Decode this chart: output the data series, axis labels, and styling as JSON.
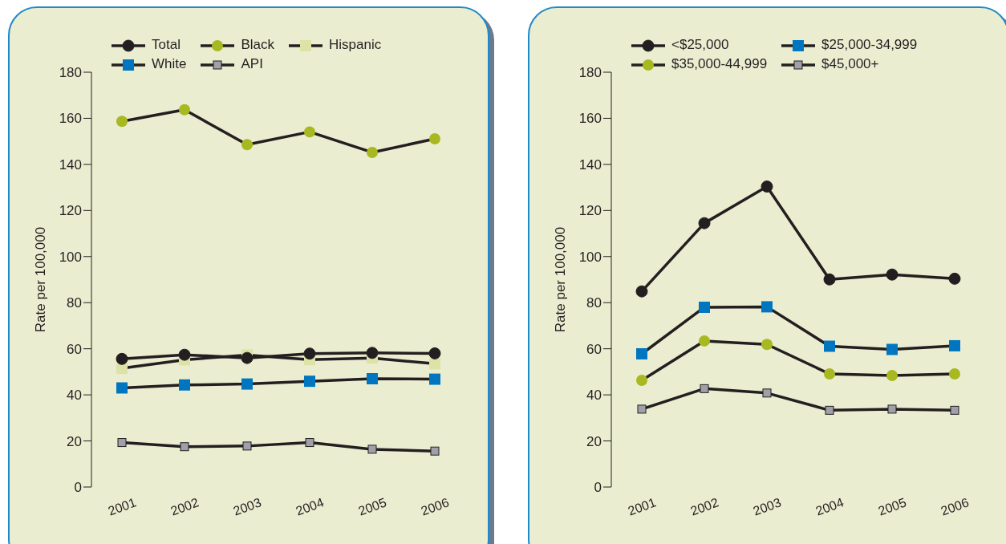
{
  "chart_data": [
    {
      "type": "line",
      "categories": [
        "2001",
        "2002",
        "2003",
        "2004",
        "2005",
        "2006"
      ],
      "ylabel": "Rate per 100,000",
      "ylim": [
        0,
        180
      ],
      "yticks": [
        0,
        20,
        40,
        60,
        80,
        100,
        120,
        140,
        160,
        180
      ],
      "grid": false,
      "legend": "top",
      "series": [
        {
          "name": "Total",
          "color": "#231f20",
          "marker": "circle",
          "values": [
            55.6,
            57.4,
            56,
            57.9,
            58.2,
            58
          ]
        },
        {
          "name": "Black",
          "color": "#a8b820",
          "marker": "circle",
          "values": [
            158.7,
            163.7,
            148.6,
            154.1,
            145.2,
            151.1
          ]
        },
        {
          "name": "Hispanic",
          "color": "#dde2a6",
          "marker": "square",
          "values": [
            51.5,
            55.2,
            57.3,
            55.3,
            56,
            53.5
          ]
        },
        {
          "name": "White",
          "color": "#0076c0",
          "marker": "square",
          "values": [
            43,
            44.3,
            44.7,
            45.9,
            47,
            46.8
          ]
        },
        {
          "name": "API",
          "color": "#a0a0a8",
          "marker": "square",
          "values": [
            19.3,
            17.5,
            17.8,
            19.3,
            16.4,
            15.6
          ]
        }
      ]
    },
    {
      "type": "line",
      "categories": [
        "2001",
        "2002",
        "2003",
        "2004",
        "2005",
        "2006"
      ],
      "ylabel": "Rate per 100,000",
      "ylim": [
        0,
        180
      ],
      "yticks": [
        0,
        20,
        40,
        60,
        80,
        100,
        120,
        140,
        160,
        180
      ],
      "grid": false,
      "legend": "top",
      "series": [
        {
          "name": "<$25,000",
          "color": "#231f20",
          "marker": "circle",
          "values": [
            84.9,
            114.5,
            130.4,
            90.1,
            92.2,
            90.4
          ]
        },
        {
          "name": "$25,000-34,999",
          "color": "#0076c0",
          "marker": "square",
          "values": [
            57.8,
            78,
            78.2,
            61.1,
            59.7,
            61.3
          ]
        },
        {
          "name": "$35,000-44,999",
          "color": "#a8b820",
          "marker": "circle",
          "values": [
            46.3,
            63.4,
            61.9,
            49.1,
            48.4,
            49.1
          ]
        },
        {
          "name": "$45,000+",
          "color": "#a0a0a8",
          "marker": "square",
          "values": [
            33.8,
            42.7,
            40.8,
            33.3,
            33.8,
            33.3
          ]
        }
      ]
    }
  ]
}
